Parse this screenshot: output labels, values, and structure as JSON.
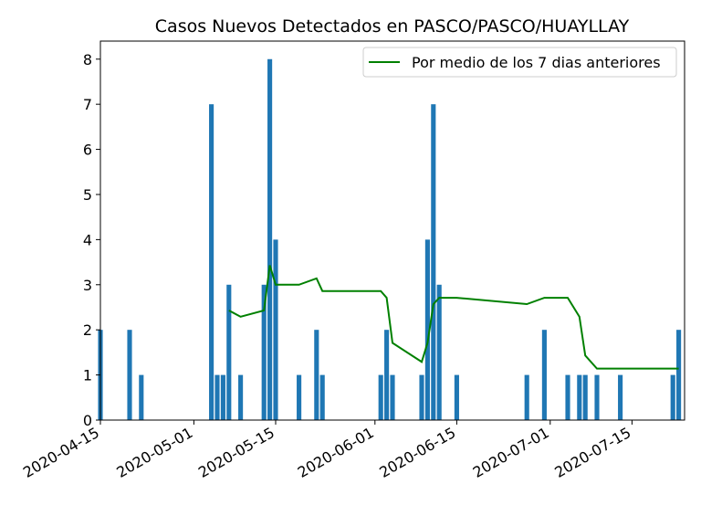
{
  "chart_data": {
    "type": "bar",
    "title": "Casos Nuevos Detectados en PASCO/PASCO/HUAYLLAY",
    "xlabel": "",
    "ylabel": "",
    "x_range": [
      "2020-04-15",
      "2020-07-24"
    ],
    "ylim": [
      0,
      8.4
    ],
    "x_ticks": [
      "2020-04-15",
      "2020-05-01",
      "2020-05-15",
      "2020-06-01",
      "2020-06-15",
      "2020-07-01",
      "2020-07-15"
    ],
    "y_ticks": [
      0,
      1,
      2,
      3,
      4,
      5,
      6,
      7,
      8
    ],
    "grid": false,
    "legend_position": "top-right",
    "bar_color": "#1f77b4",
    "bars": [
      {
        "date": "2020-04-15",
        "value": 2
      },
      {
        "date": "2020-04-20",
        "value": 2
      },
      {
        "date": "2020-04-22",
        "value": 1
      },
      {
        "date": "2020-05-04",
        "value": 7
      },
      {
        "date": "2020-05-05",
        "value": 1
      },
      {
        "date": "2020-05-06",
        "value": 1
      },
      {
        "date": "2020-05-07",
        "value": 3
      },
      {
        "date": "2020-05-09",
        "value": 1
      },
      {
        "date": "2020-05-13",
        "value": 3
      },
      {
        "date": "2020-05-14",
        "value": 8
      },
      {
        "date": "2020-05-15",
        "value": 4
      },
      {
        "date": "2020-05-19",
        "value": 1
      },
      {
        "date": "2020-05-22",
        "value": 2
      },
      {
        "date": "2020-05-23",
        "value": 1
      },
      {
        "date": "2020-06-02",
        "value": 1
      },
      {
        "date": "2020-06-03",
        "value": 2
      },
      {
        "date": "2020-06-04",
        "value": 1
      },
      {
        "date": "2020-06-09",
        "value": 1
      },
      {
        "date": "2020-06-10",
        "value": 4
      },
      {
        "date": "2020-06-11",
        "value": 7
      },
      {
        "date": "2020-06-12",
        "value": 3
      },
      {
        "date": "2020-06-15",
        "value": 1
      },
      {
        "date": "2020-06-27",
        "value": 1
      },
      {
        "date": "2020-06-30",
        "value": 2
      },
      {
        "date": "2020-07-04",
        "value": 1
      },
      {
        "date": "2020-07-06",
        "value": 1
      },
      {
        "date": "2020-07-07",
        "value": 1
      },
      {
        "date": "2020-07-09",
        "value": 1
      },
      {
        "date": "2020-07-13",
        "value": 1
      },
      {
        "date": "2020-07-22",
        "value": 1
      },
      {
        "date": "2020-07-23",
        "value": 2
      }
    ],
    "series": [
      {
        "name": "Por medio de los 7 dias anteriores",
        "color": "#008000",
        "points": [
          {
            "date": "2020-05-07",
            "value": 2.43
          },
          {
            "date": "2020-05-09",
            "value": 2.29
          },
          {
            "date": "2020-05-13",
            "value": 2.43
          },
          {
            "date": "2020-05-14",
            "value": 3.43
          },
          {
            "date": "2020-05-15",
            "value": 3.0
          },
          {
            "date": "2020-05-19",
            "value": 3.0
          },
          {
            "date": "2020-05-22",
            "value": 3.14
          },
          {
            "date": "2020-05-23",
            "value": 2.86
          },
          {
            "date": "2020-06-02",
            "value": 2.86
          },
          {
            "date": "2020-06-03",
            "value": 2.71
          },
          {
            "date": "2020-06-04",
            "value": 1.71
          },
          {
            "date": "2020-06-09",
            "value": 1.29
          },
          {
            "date": "2020-06-10",
            "value": 1.71
          },
          {
            "date": "2020-06-11",
            "value": 2.57
          },
          {
            "date": "2020-06-12",
            "value": 2.71
          },
          {
            "date": "2020-06-15",
            "value": 2.71
          },
          {
            "date": "2020-06-27",
            "value": 2.57
          },
          {
            "date": "2020-06-30",
            "value": 2.71
          },
          {
            "date": "2020-07-04",
            "value": 2.71
          },
          {
            "date": "2020-07-06",
            "value": 2.29
          },
          {
            "date": "2020-07-07",
            "value": 1.43
          },
          {
            "date": "2020-07-09",
            "value": 1.14
          },
          {
            "date": "2020-07-13",
            "value": 1.14
          },
          {
            "date": "2020-07-22",
            "value": 1.14
          },
          {
            "date": "2020-07-23",
            "value": 1.14
          }
        ]
      }
    ]
  }
}
